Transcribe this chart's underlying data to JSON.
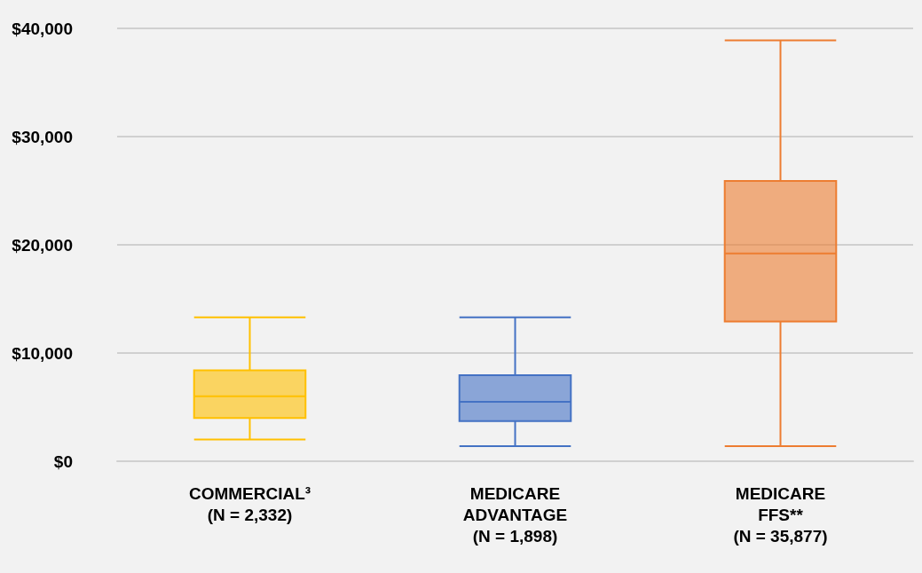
{
  "chart_data": {
    "type": "box",
    "categories": [
      "COMMERCIAL³\n(N = 2,332)",
      "MEDICARE\nADVANTAGE\n(N = 1,898)",
      "MEDICARE\nFFS**\n(N = 35,877)"
    ],
    "boxes": [
      {
        "low": 2000,
        "q1": 4000,
        "median": 6000,
        "q3": 8400,
        "high": 13300
      },
      {
        "low": 1400,
        "q1": 3700,
        "median": 5500,
        "q3": 7950,
        "high": 13300
      },
      {
        "low": 1400,
        "q1": 12900,
        "median": 19200,
        "q3": 25900,
        "high": 38900
      }
    ],
    "colors": [
      "#ffc000",
      "#4472c4",
      "#ed7d31"
    ],
    "ylim": [
      0,
      40000
    ],
    "yticks": [
      {
        "value": 0,
        "label": "$0"
      },
      {
        "value": 10000,
        "label": "$10,000"
      },
      {
        "value": 20000,
        "label": "$20,000"
      },
      {
        "value": 30000,
        "label": "$30,000"
      },
      {
        "value": 40000,
        "label": "$40,000"
      }
    ],
    "grid": "y"
  }
}
